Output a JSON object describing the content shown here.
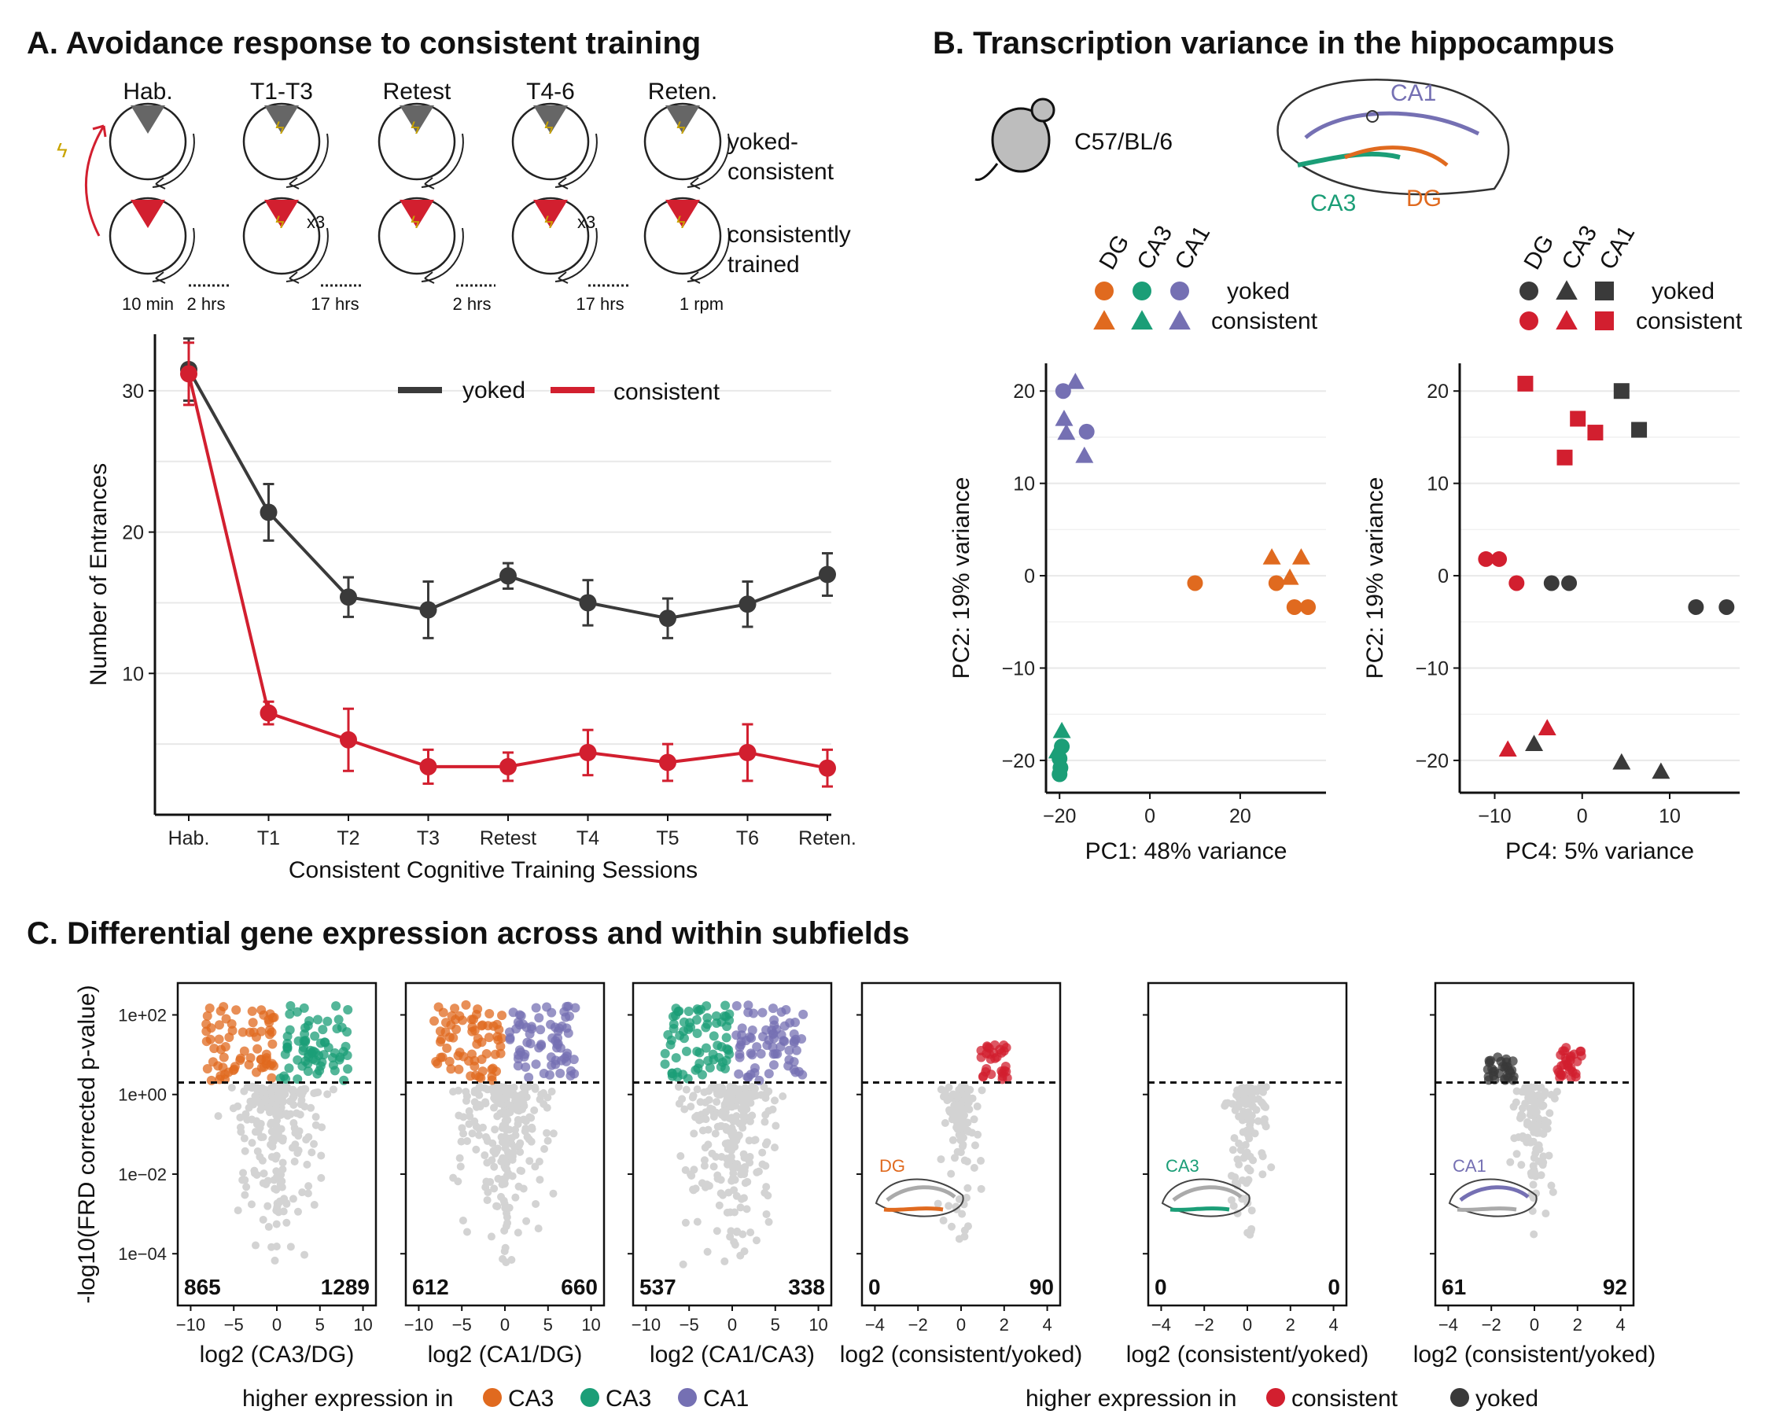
{
  "titles": {
    "a": "A. Avoidance response to consistent training",
    "b": "B. Transcription variance in the hippocampus",
    "c": "C. Differential gene expression across and within subfields"
  },
  "schematic": {
    "sessions": [
      "Hab.",
      "T1-T3",
      "Retest",
      "T4-6",
      "Reten."
    ],
    "rows": [
      "yoked-\nconsistent",
      "consistently\ntrained"
    ],
    "row_labels": [
      "yoked-",
      "consistent",
      "consistently",
      "trained"
    ],
    "gaps": [
      "10 min",
      "2 hrs",
      "17 hrs",
      "2 hrs",
      "17 hrs",
      "1 rpm"
    ],
    "repeat": "x3"
  },
  "strain": "C57/BL/6",
  "subfields": [
    "CA1",
    "CA3",
    "DG"
  ],
  "colors": {
    "yoked": "#3a3a3a",
    "consistent": "#d21f2f",
    "DG": "#e06a1f",
    "CA3": "#1b9e77",
    "CA1": "#7570b3",
    "grey": "#d3d3d3"
  },
  "chart_data": [
    {
      "type": "line",
      "panel": "A",
      "categories": [
        "Hab.",
        "T1",
        "T2",
        "T3",
        "Retest",
        "T4",
        "T5",
        "T6",
        "Reten."
      ],
      "series": [
        {
          "name": "yoked",
          "values": [
            31.5,
            21.4,
            15.4,
            14.5,
            16.9,
            15.0,
            13.9,
            14.9,
            17.0
          ],
          "err": [
            2.2,
            2.0,
            1.4,
            2.0,
            0.9,
            1.6,
            1.4,
            1.6,
            1.5
          ]
        },
        {
          "name": "consistent",
          "values": [
            31.2,
            7.2,
            5.3,
            3.4,
            3.4,
            4.4,
            3.7,
            4.4,
            3.3
          ],
          "err": [
            2.2,
            0.8,
            2.2,
            1.2,
            1.0,
            1.6,
            1.3,
            2.0,
            1.3
          ]
        }
      ],
      "xlabel": "Consistent Cognitive Training Sessions",
      "ylabel": "Number of Entrances",
      "yticks": [
        10,
        20,
        30
      ],
      "ylim": [
        0,
        34
      ],
      "legend": "top-right"
    },
    {
      "type": "scatter",
      "panel": "B-left",
      "xlabel": "PC1: 48% variance",
      "ylabel": "PC2: 19% variance",
      "xticks": [
        -20,
        0,
        20
      ],
      "yticks": [
        -20,
        -10,
        0,
        10,
        20
      ],
      "xlim": [
        -23,
        39
      ],
      "ylim": [
        -23.5,
        23
      ],
      "points": [
        {
          "x": -19.2,
          "y": 20.0,
          "g": "CA1",
          "s": "yoked"
        },
        {
          "x": -14.0,
          "y": 15.6,
          "g": "CA1",
          "s": "yoked"
        },
        {
          "x": -16.5,
          "y": 21.0,
          "g": "CA1",
          "s": "consistent"
        },
        {
          "x": -19.0,
          "y": 17.0,
          "g": "CA1",
          "s": "consistent"
        },
        {
          "x": -18.5,
          "y": 15.5,
          "g": "CA1",
          "s": "consistent"
        },
        {
          "x": -14.5,
          "y": 13.0,
          "g": "CA1",
          "s": "consistent"
        },
        {
          "x": 10.0,
          "y": -0.8,
          "g": "DG",
          "s": "yoked"
        },
        {
          "x": 28.0,
          "y": -0.8,
          "g": "DG",
          "s": "yoked"
        },
        {
          "x": 32.0,
          "y": -3.4,
          "g": "DG",
          "s": "yoked"
        },
        {
          "x": 35.0,
          "y": -3.4,
          "g": "DG",
          "s": "yoked"
        },
        {
          "x": 27.0,
          "y": 2.0,
          "g": "DG",
          "s": "consistent"
        },
        {
          "x": 33.5,
          "y": 2.0,
          "g": "DG",
          "s": "consistent"
        },
        {
          "x": 31.0,
          "y": -0.2,
          "g": "DG",
          "s": "consistent"
        },
        {
          "x": -19.5,
          "y": -18.5,
          "g": "CA3",
          "s": "yoked"
        },
        {
          "x": -20.0,
          "y": -19.8,
          "g": "CA3",
          "s": "yoked"
        },
        {
          "x": -19.8,
          "y": -20.8,
          "g": "CA3",
          "s": "yoked"
        },
        {
          "x": -20.0,
          "y": -21.5,
          "g": "CA3",
          "s": "yoked"
        },
        {
          "x": -19.5,
          "y": -16.8,
          "g": "CA3",
          "s": "consistent"
        },
        {
          "x": -20.5,
          "y": -19.0,
          "g": "CA3",
          "s": "consistent"
        }
      ],
      "legend": {
        "header": [
          "DG",
          "CA3",
          "CA1"
        ],
        "rows": [
          "yoked",
          "consistent"
        ]
      }
    },
    {
      "type": "scatter",
      "panel": "B-right",
      "xlabel": "PC4: 5% variance",
      "ylabel": "PC2: 19% variance",
      "xticks": [
        -10,
        0,
        10
      ],
      "yticks": [
        -20,
        -10,
        0,
        10,
        20
      ],
      "xlim": [
        -14,
        18
      ],
      "ylim": [
        -23.5,
        23
      ],
      "points": [
        {
          "x": -11.0,
          "y": 1.8,
          "g": "DG",
          "s": "consistent"
        },
        {
          "x": -9.5,
          "y": 1.8,
          "g": "DG",
          "s": "consistent"
        },
        {
          "x": -7.5,
          "y": -0.8,
          "g": "DG",
          "s": "consistent"
        },
        {
          "x": -3.5,
          "y": -0.8,
          "g": "DG",
          "s": "yoked"
        },
        {
          "x": -1.5,
          "y": -0.8,
          "g": "DG",
          "s": "yoked"
        },
        {
          "x": 13.0,
          "y": -3.4,
          "g": "DG",
          "s": "yoked"
        },
        {
          "x": 16.5,
          "y": -3.4,
          "g": "DG",
          "s": "yoked"
        },
        {
          "x": -4.0,
          "y": -16.5,
          "g": "CA3",
          "s": "consistent"
        },
        {
          "x": -8.5,
          "y": -18.8,
          "g": "CA3",
          "s": "consistent"
        },
        {
          "x": -5.5,
          "y": -18.2,
          "g": "CA3",
          "s": "yoked"
        },
        {
          "x": 4.5,
          "y": -20.2,
          "g": "CA3",
          "s": "yoked"
        },
        {
          "x": 9.0,
          "y": -21.2,
          "g": "CA3",
          "s": "yoked"
        },
        {
          "x": -6.5,
          "y": 20.8,
          "g": "CA1",
          "s": "consistent"
        },
        {
          "x": -0.5,
          "y": 17.0,
          "g": "CA1",
          "s": "consistent"
        },
        {
          "x": 1.5,
          "y": 15.5,
          "g": "CA1",
          "s": "consistent"
        },
        {
          "x": -2.0,
          "y": 12.8,
          "g": "CA1",
          "s": "consistent"
        },
        {
          "x": 4.5,
          "y": 20.0,
          "g": "CA1",
          "s": "yoked"
        },
        {
          "x": 6.5,
          "y": 15.8,
          "g": "CA1",
          "s": "yoked"
        }
      ],
      "legend": {
        "header": [
          "DG",
          "CA3",
          "CA1"
        ],
        "rows": [
          "yoked",
          "consistent"
        ]
      }
    },
    {
      "type": "scatter",
      "panel": "C",
      "ylabel": "-log10(FRD corrected p-value)",
      "yticks": [
        "1e+02",
        "1e+00",
        "1e−02",
        "1e−04"
      ],
      "ytick_values": [
        2,
        0,
        -2,
        -4
      ],
      "threshold": 0.3,
      "panels": [
        {
          "xlabel": "log2 (CA3/DG)",
          "xticks": [
            -10,
            -5,
            0,
            5,
            10
          ],
          "left_count": "865",
          "right_count": "1289",
          "left_color": "DG",
          "right_color": "CA3",
          "inset": ""
        },
        {
          "xlabel": "log2 (CA1/DG)",
          "xticks": [
            -10,
            -5,
            0,
            5,
            10
          ],
          "left_count": "612",
          "right_count": "660",
          "left_color": "DG",
          "right_color": "CA1",
          "inset": ""
        },
        {
          "xlabel": "log2 (CA1/CA3)",
          "xticks": [
            -10,
            -5,
            0,
            5,
            10
          ],
          "left_count": "537",
          "right_count": "338",
          "left_color": "CA3",
          "right_color": "CA1",
          "inset": ""
        },
        {
          "xlabel": "log2 (consistent/yoked)",
          "xticks": [
            -4,
            -2,
            0,
            2,
            4
          ],
          "left_count": "0",
          "right_count": "90",
          "left_color": "yoked",
          "right_color": "consistent",
          "inset": "DG"
        },
        {
          "xlabel": "log2 (consistent/yoked)",
          "xticks": [
            -4,
            -2,
            0,
            2,
            4
          ],
          "left_count": "0",
          "right_count": "0",
          "left_color": "yoked",
          "right_color": "consistent",
          "inset": "CA3"
        },
        {
          "xlabel": "log2 (consistent/yoked)",
          "xticks": [
            -4,
            -2,
            0,
            2,
            4
          ],
          "left_count": "61",
          "right_count": "92",
          "left_color": "yoked",
          "right_color": "consistent",
          "inset": "CA1"
        }
      ],
      "legend_left": {
        "prefix": "higher expression in",
        "items": [
          "CA3",
          "CA3",
          "CA1"
        ]
      },
      "legend_right": {
        "prefix": "higher expression in",
        "items": [
          "consistent",
          "yoked"
        ]
      }
    }
  ]
}
